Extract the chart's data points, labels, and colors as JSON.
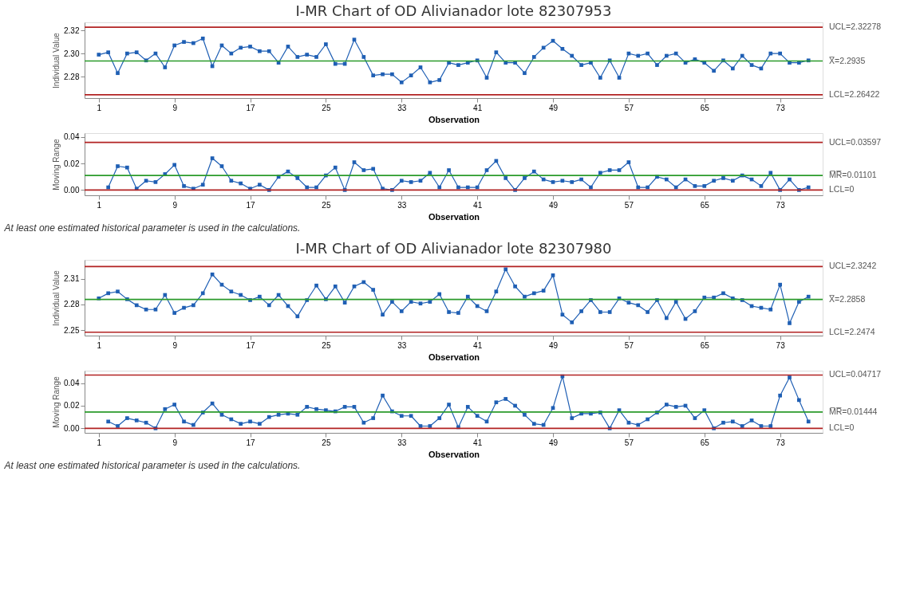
{
  "chart_data": [
    {
      "type": "line",
      "title": "I-MR Chart of OD Alivianador lote 82307953",
      "xlabel": "Observation",
      "ylabel": "Individual Value",
      "marker": "square",
      "line_style": "solid",
      "grid": false,
      "x": [
        1,
        2,
        3,
        4,
        5,
        6,
        7,
        8,
        9,
        10,
        11,
        12,
        13,
        14,
        15,
        16,
        17,
        18,
        19,
        20,
        21,
        22,
        23,
        24,
        25,
        26,
        27,
        28,
        29,
        30,
        31,
        32,
        33,
        34,
        35,
        36,
        37,
        38,
        39,
        40,
        41,
        42,
        43,
        44,
        45,
        46,
        47,
        48,
        49,
        50,
        51,
        52,
        53,
        54,
        55,
        56,
        57,
        58,
        59,
        60,
        61,
        62,
        63,
        64,
        65,
        66,
        67,
        68,
        69,
        70,
        71,
        72,
        73,
        74,
        75,
        76
      ],
      "xlim": [
        -0.5,
        77.5
      ],
      "xticks": [
        1,
        9,
        17,
        25,
        33,
        41,
        49,
        57,
        65,
        73
      ],
      "ylim": [
        2.2614,
        2.327
      ],
      "yticks": [
        {
          "value": 2.28,
          "label": "2.28"
        },
        {
          "value": 2.3,
          "label": "2.30"
        },
        {
          "value": 2.32,
          "label": "2.32"
        }
      ],
      "series": [
        {
          "color": "#1f5fb4",
          "values": [
            2.299,
            2.301,
            2.283,
            2.3,
            2.301,
            2.294,
            2.3,
            2.288,
            2.307,
            2.31,
            2.309,
            2.313,
            2.289,
            2.307,
            2.3,
            2.305,
            2.306,
            2.302,
            2.302,
            2.292,
            2.306,
            2.297,
            2.299,
            2.297,
            2.308,
            2.291,
            2.291,
            2.312,
            2.297,
            2.281,
            2.282,
            2.282,
            2.275,
            2.281,
            2.288,
            2.275,
            2.277,
            2.292,
            2.29,
            2.292,
            2.294,
            2.279,
            2.301,
            2.292,
            2.292,
            2.283,
            2.297,
            2.305,
            2.311,
            2.304,
            2.298,
            2.29,
            2.292,
            2.279,
            2.294,
            2.279,
            2.3,
            2.298,
            2.3,
            2.29,
            2.298,
            2.3,
            2.292,
            2.295,
            2.292,
            2.285,
            2.294,
            2.287,
            2.298,
            2.29,
            2.287,
            2.3,
            2.3,
            2.292,
            2.292,
            2.294
          ]
        }
      ],
      "ref_lines": [
        {
          "axis": "y",
          "value": 2.32278,
          "label": "UCL=2.32278",
          "color": "#b22222"
        },
        {
          "axis": "y",
          "value": 2.2935,
          "label": "X̅=2.2935",
          "color": "#2a9a2a"
        },
        {
          "axis": "y",
          "value": 2.26422,
          "label": "LCL=2.26422",
          "color": "#b22222"
        }
      ]
    },
    {
      "type": "line",
      "xlabel": "Observation",
      "ylabel": "Moving Range",
      "marker": "square",
      "line_style": "solid",
      "grid": false,
      "xlim": [
        -0.5,
        77.5
      ],
      "xticks": [
        1,
        9,
        17,
        25,
        33,
        41,
        49,
        57,
        65,
        73
      ],
      "ylim": [
        -0.004,
        0.043
      ],
      "yticks": [
        {
          "value": 0,
          "label": "0.00"
        },
        {
          "value": 0.02,
          "label": "0.02"
        },
        {
          "value": 0.04,
          "label": "0.04"
        }
      ],
      "series": [
        {
          "color": "#1f5fb4",
          "x": [
            2,
            3,
            4,
            5,
            6,
            7,
            8,
            9,
            10,
            11,
            12,
            13,
            14,
            15,
            16,
            17,
            18,
            19,
            20,
            21,
            22,
            23,
            24,
            25,
            26,
            27,
            28,
            29,
            30,
            31,
            32,
            33,
            34,
            35,
            36,
            37,
            38,
            39,
            40,
            41,
            42,
            43,
            44,
            45,
            46,
            47,
            48,
            49,
            50,
            51,
            52,
            53,
            54,
            55,
            56,
            57,
            58,
            59,
            60,
            61,
            62,
            63,
            64,
            65,
            66,
            67,
            68,
            69,
            70,
            71,
            72,
            73,
            74,
            75,
            76
          ],
          "values": [
            0.002,
            0.018,
            0.017,
            0.001,
            0.007,
            0.006,
            0.012,
            0.019,
            0.003,
            0.001,
            0.004,
            0.024,
            0.018,
            0.007,
            0.005,
            0.001,
            0.004,
            0.0,
            0.01,
            0.014,
            0.009,
            0.002,
            0.002,
            0.011,
            0.017,
            0.0,
            0.021,
            0.015,
            0.016,
            0.001,
            0.0,
            0.007,
            0.006,
            0.007,
            0.013,
            0.002,
            0.015,
            0.002,
            0.002,
            0.002,
            0.015,
            0.022,
            0.009,
            0.0,
            0.009,
            0.014,
            0.008,
            0.006,
            0.007,
            0.006,
            0.008,
            0.002,
            0.013,
            0.015,
            0.015,
            0.021,
            0.002,
            0.002,
            0.01,
            0.008,
            0.002,
            0.008,
            0.003,
            0.003,
            0.007,
            0.009,
            0.007,
            0.011,
            0.008,
            0.003,
            0.013,
            0.0,
            0.008,
            0.0,
            0.002
          ]
        }
      ],
      "ref_lines": [
        {
          "axis": "y",
          "value": 0.03597,
          "label": "UCL=0.03597",
          "color": "#b22222"
        },
        {
          "axis": "y",
          "value": 0.01101,
          "label": "M̅R̅=0.01101",
          "color": "#2a9a2a"
        },
        {
          "axis": "y",
          "value": 0,
          "label": "LCL=0",
          "color": "#b22222"
        }
      ],
      "annotations": [
        "At least one estimated historical parameter is used in the calculations."
      ]
    },
    {
      "type": "line",
      "title": "I-MR Chart of OD Alivianador lote 82307980",
      "xlabel": "Observation",
      "ylabel": "Individual Value",
      "marker": "square",
      "line_style": "solid",
      "grid": false,
      "x": [
        1,
        2,
        3,
        4,
        5,
        6,
        7,
        8,
        9,
        10,
        11,
        12,
        13,
        14,
        15,
        16,
        17,
        18,
        19,
        20,
        21,
        22,
        23,
        24,
        25,
        26,
        27,
        28,
        29,
        30,
        31,
        32,
        33,
        34,
        35,
        36,
        37,
        38,
        39,
        40,
        41,
        42,
        43,
        44,
        45,
        46,
        47,
        48,
        49,
        50,
        51,
        52,
        53,
        54,
        55,
        56,
        57,
        58,
        59,
        60,
        61,
        62,
        63,
        64,
        65,
        66,
        67,
        68,
        69,
        70,
        71,
        72,
        73,
        74,
        75,
        76
      ],
      "xlim": [
        -0.5,
        77.5
      ],
      "xticks": [
        1,
        9,
        17,
        25,
        33,
        41,
        49,
        57,
        65,
        73
      ],
      "ylim": [
        2.2435,
        2.332
      ],
      "yticks": [
        2.25,
        2.28,
        2.31
      ],
      "series": [
        {
          "color": "#1f5fb4",
          "values": [
            2.287,
            2.293,
            2.295,
            2.286,
            2.279,
            2.274,
            2.274,
            2.291,
            2.27,
            2.276,
            2.279,
            2.293,
            2.315,
            2.303,
            2.295,
            2.291,
            2.285,
            2.289,
            2.279,
            2.291,
            2.278,
            2.266,
            2.285,
            2.302,
            2.286,
            2.301,
            2.282,
            2.301,
            2.306,
            2.297,
            2.268,
            2.283,
            2.272,
            2.283,
            2.281,
            2.283,
            2.292,
            2.271,
            2.27,
            2.289,
            2.278,
            2.272,
            2.295,
            2.321,
            2.301,
            2.289,
            2.293,
            2.296,
            2.314,
            2.268,
            2.259,
            2.272,
            2.285,
            2.271,
            2.271,
            2.287,
            2.282,
            2.279,
            2.271,
            2.285,
            2.264,
            2.283,
            2.263,
            2.272,
            2.288,
            2.288,
            2.293,
            2.287,
            2.285,
            2.278,
            2.276,
            2.274,
            2.303,
            2.258,
            2.283,
            2.289
          ]
        }
      ],
      "ref_lines": [
        {
          "axis": "y",
          "value": 2.3242,
          "label": "UCL=2.3242",
          "color": "#b22222"
        },
        {
          "axis": "y",
          "value": 2.2858,
          "label": "X̅=2.2858",
          "color": "#2a9a2a"
        },
        {
          "axis": "y",
          "value": 2.2474,
          "label": "LCL=2.2474",
          "color": "#b22222"
        }
      ]
    },
    {
      "type": "line",
      "xlabel": "Observation",
      "ylabel": "Moving Range",
      "marker": "square",
      "line_style": "solid",
      "grid": false,
      "xlim": [
        -0.5,
        77.5
      ],
      "xticks": [
        1,
        9,
        17,
        25,
        33,
        41,
        49,
        57,
        65,
        73
      ],
      "ylim": [
        -0.004,
        0.051
      ],
      "yticks": [
        {
          "value": 0,
          "label": "0.00"
        },
        {
          "value": 0.02,
          "label": "0.02"
        },
        {
          "value": 0.04,
          "label": "0.04"
        }
      ],
      "series": [
        {
          "color": "#1f5fb4",
          "x": [
            2,
            3,
            4,
            5,
            6,
            7,
            8,
            9,
            10,
            11,
            12,
            13,
            14,
            15,
            16,
            17,
            18,
            19,
            20,
            21,
            22,
            23,
            24,
            25,
            26,
            27,
            28,
            29,
            30,
            31,
            32,
            33,
            34,
            35,
            36,
            37,
            38,
            39,
            40,
            41,
            42,
            43,
            44,
            45,
            46,
            47,
            48,
            49,
            50,
            51,
            52,
            53,
            54,
            55,
            56,
            57,
            58,
            59,
            60,
            61,
            62,
            63,
            64,
            65,
            66,
            67,
            68,
            69,
            70,
            71,
            72,
            73,
            74,
            75,
            76
          ],
          "values": [
            0.006,
            0.002,
            0.009,
            0.007,
            0.005,
            0.0,
            0.017,
            0.021,
            0.006,
            0.003,
            0.014,
            0.022,
            0.012,
            0.008,
            0.004,
            0.006,
            0.004,
            0.01,
            0.012,
            0.013,
            0.012,
            0.019,
            0.017,
            0.016,
            0.015,
            0.019,
            0.019,
            0.005,
            0.009,
            0.029,
            0.015,
            0.011,
            0.011,
            0.002,
            0.002,
            0.009,
            0.021,
            0.001,
            0.019,
            0.011,
            0.006,
            0.023,
            0.026,
            0.02,
            0.012,
            0.004,
            0.003,
            0.018,
            0.046,
            0.009,
            0.013,
            0.013,
            0.014,
            0.0,
            0.016,
            0.005,
            0.003,
            0.008,
            0.014,
            0.021,
            0.019,
            0.02,
            0.009,
            0.016,
            0.0,
            0.005,
            0.006,
            0.002,
            0.007,
            0.002,
            0.002,
            0.029,
            0.045,
            0.025,
            0.006
          ]
        }
      ],
      "ref_lines": [
        {
          "axis": "y",
          "value": 0.04717,
          "label": "UCL=0.04717",
          "color": "#b22222"
        },
        {
          "axis": "y",
          "value": 0.01444,
          "label": "M̅R̅=0.01444",
          "color": "#2a9a2a"
        },
        {
          "axis": "y",
          "value": 0,
          "label": "LCL=0",
          "color": "#b22222"
        }
      ],
      "annotations": [
        "At least one estimated historical parameter is used in the calculations."
      ]
    }
  ]
}
